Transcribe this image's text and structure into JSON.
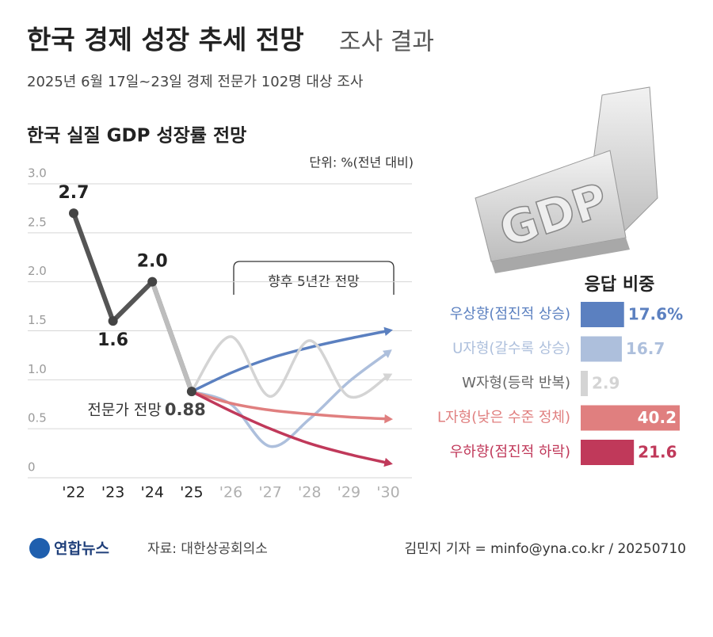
{
  "header": {
    "title": "한국 경제 성장 추세 전망",
    "title_suffix": "조사 결과",
    "subtitle": "2025년 6월 17일~23일 경제 전문가 102명 대상 조사"
  },
  "graphic_label": "GDP",
  "chart_data": [
    {
      "type": "line",
      "title": "한국 실질 GDP 성장률 전망",
      "unit": "단위: %(전년 대비)",
      "categories": [
        "'22",
        "'23",
        "'24",
        "'25",
        "'26",
        "'27",
        "'28",
        "'29",
        "'30"
      ],
      "ylim": [
        0,
        3
      ],
      "yticks": [
        0,
        0.5,
        {
          "value": 1,
          "label": "1.0"
        },
        1.5,
        {
          "value": 2,
          "label": "2.0"
        },
        2.5,
        {
          "value": 3,
          "label": "3.0"
        }
      ],
      "grid": true,
      "annotations": {
        "forecast": "향후 5년간 전망",
        "expert": "전문가 전망"
      },
      "series": [
        {
          "color": "#555555",
          "values": [
            2.7,
            1.6,
            2.0,
            0.88,
            null,
            null,
            null,
            null,
            null
          ],
          "value_labels": [
            "2.7",
            "1.6",
            "2.0",
            "0.88",
            null,
            null,
            null,
            null,
            null
          ]
        },
        {
          "color": "#5b80c0",
          "values": [
            null,
            null,
            null,
            0.88,
            1.07,
            1.22,
            1.33,
            1.42,
            1.5
          ]
        },
        {
          "color": "#adbfdc",
          "values": [
            null,
            null,
            null,
            0.88,
            0.75,
            0.32,
            0.6,
            0.98,
            1.28
          ]
        },
        {
          "color": "#d4d4d4",
          "values": [
            null,
            null,
            null,
            0.88,
            1.44,
            0.83,
            1.4,
            0.83,
            1.04
          ]
        },
        {
          "color": "#e07f7f",
          "values": [
            null,
            null,
            null,
            0.88,
            0.76,
            0.69,
            0.65,
            0.62,
            0.6
          ]
        },
        {
          "color": "#c0395a",
          "values": [
            null,
            null,
            null,
            0.88,
            0.68,
            0.5,
            0.35,
            0.24,
            0.15
          ]
        }
      ]
    },
    {
      "type": "hbar",
      "title": "응답 비중",
      "categories": [
        "우상향(점진적 상승)",
        "U자형(갈수록 상승)",
        "W자형(등락 반복)",
        "L자형(낮은 수준 정체)",
        "우하향(점진적 하락)"
      ],
      "values": [
        17.6,
        16.7,
        2.9,
        40.2,
        21.6
      ],
      "value_labels": [
        "17.6%",
        "16.7",
        "2.9",
        "40.2",
        "21.6"
      ],
      "colors": [
        "#5b80c0",
        "#adbfdc",
        "#d4d4d4",
        "#e07f7f",
        "#c0395a"
      ]
    }
  ],
  "footer": {
    "logo": "연합뉴스",
    "source": "자료: 대한상공회의소",
    "credit": "김민지 기자 = minfo@yna.co.kr / 20250710"
  }
}
